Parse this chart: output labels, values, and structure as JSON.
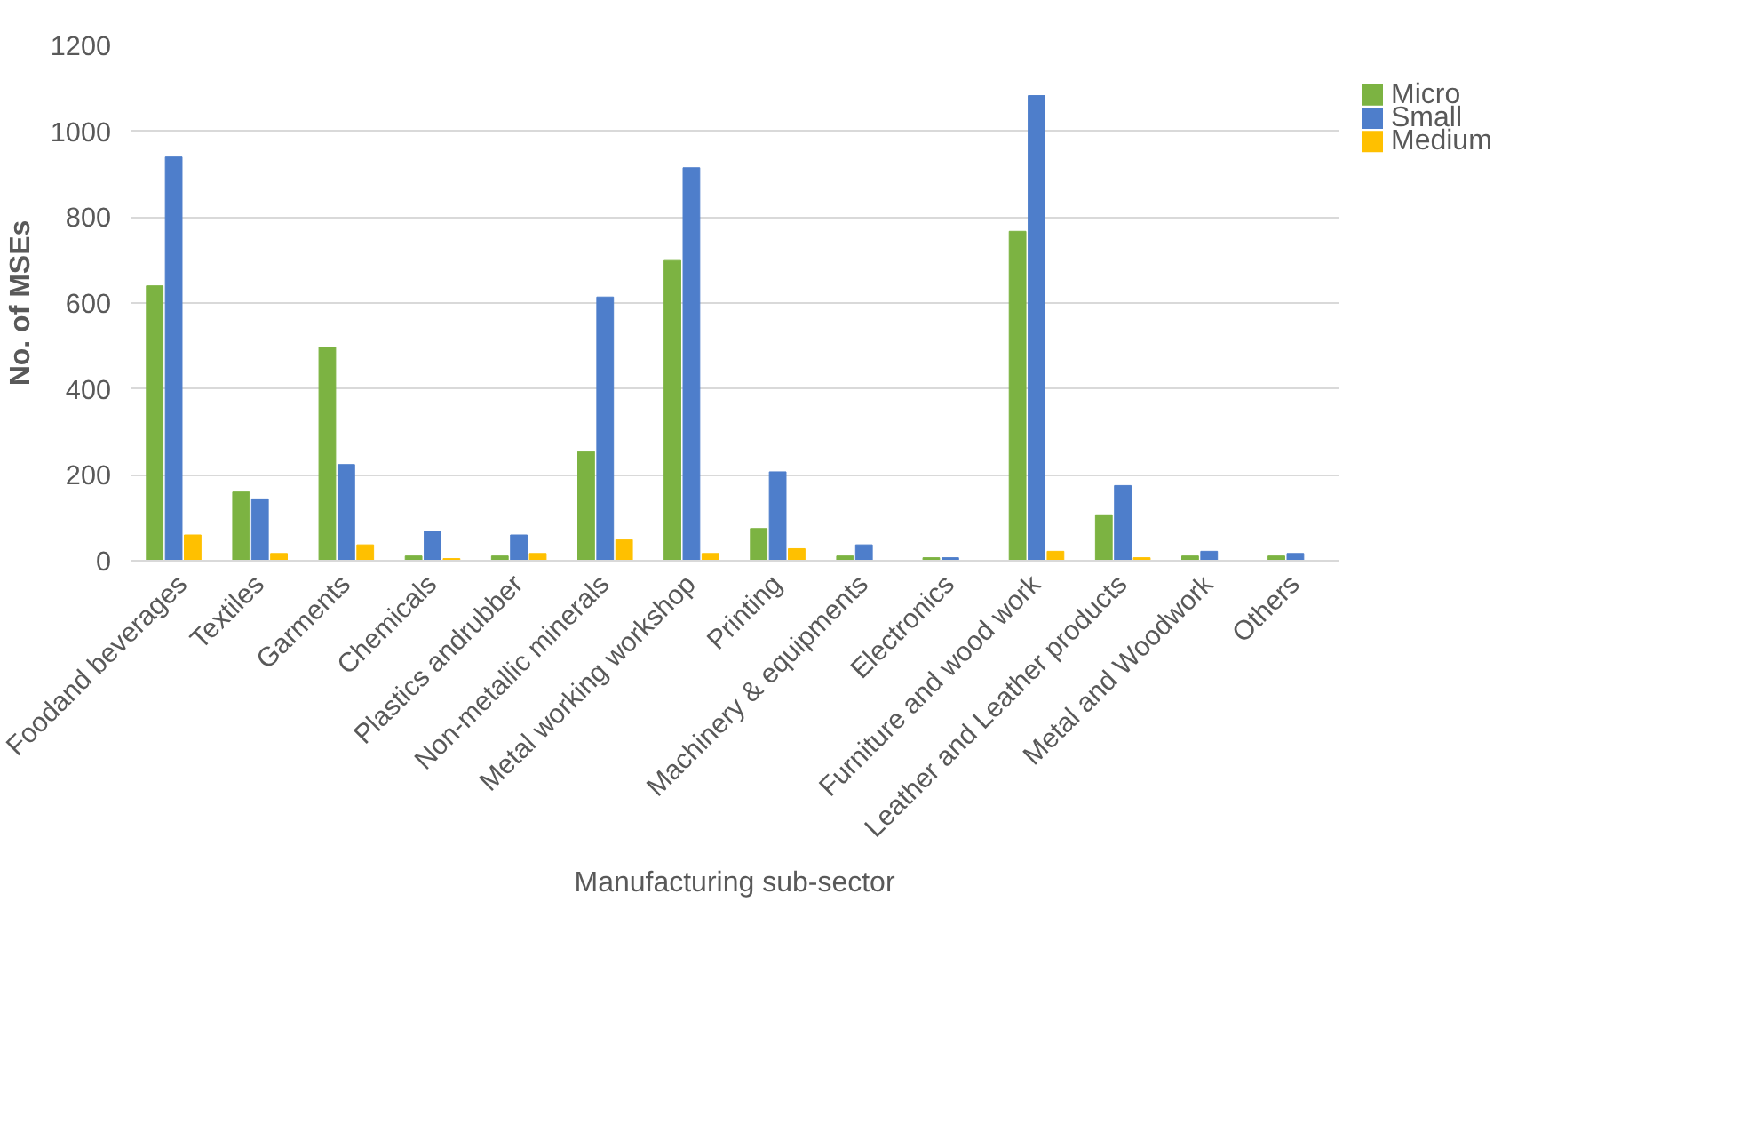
{
  "chart_data": {
    "type": "bar",
    "xlabel": "Manufacturing sub-sector",
    "ylabel": "No. of MSEs",
    "categories": [
      "Foodand beverages",
      "Textiles",
      "Garments",
      "Chemicals",
      "Plastics andrubber",
      "Non-metallic minerals",
      "Metal working workshop",
      "Printing",
      "Machinery & equipments",
      "Electronics",
      "Furniture and wood work",
      "Leather and Leather products",
      "Metal and Woodwork",
      "Others"
    ],
    "series": [
      {
        "name": "Micro",
        "color": "#7cb342",
        "values": [
          640,
          160,
          497,
          11,
          11,
          254,
          699,
          75,
          11,
          7,
          767,
          107,
          11,
          11
        ]
      },
      {
        "name": "Small",
        "color": "#4e7ecb",
        "values": [
          940,
          144,
          224,
          69,
          60,
          614,
          915,
          207,
          37,
          7,
          1083,
          175,
          22,
          17
        ]
      },
      {
        "name": "Medium",
        "color": "#ffc000",
        "values": [
          60,
          17,
          37,
          5,
          17,
          49,
          17,
          28,
          0,
          0,
          22,
          7,
          0,
          0
        ]
      }
    ],
    "ylim": [
      0,
      1200
    ],
    "yticks": [
      0,
      200,
      400,
      600,
      800,
      1000,
      1200
    ],
    "grid": "y",
    "legend": "right"
  }
}
